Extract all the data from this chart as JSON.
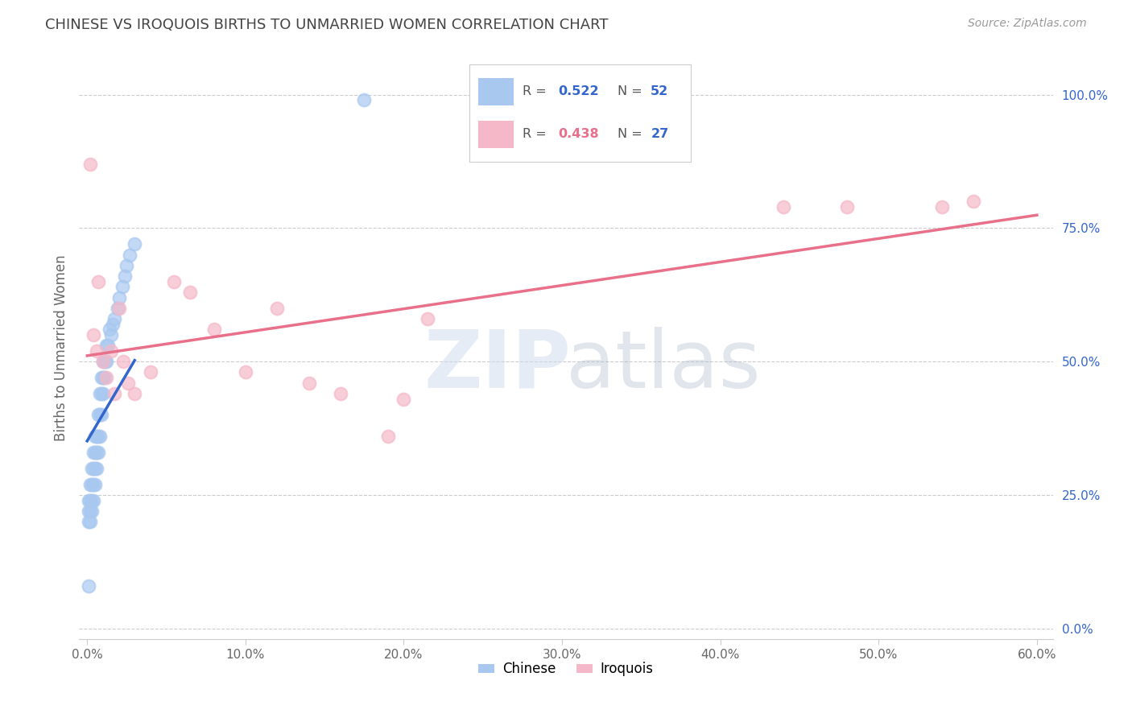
{
  "title": "CHINESE VS IROQUOIS BIRTHS TO UNMARRIED WOMEN CORRELATION CHART",
  "source": "Source: ZipAtlas.com",
  "ylabel": "Births to Unmarried Women",
  "xlabel_ticks": [
    "0.0%",
    "10.0%",
    "20.0%",
    "30.0%",
    "40.0%",
    "50.0%",
    "60.0%"
  ],
  "xlabel_vals": [
    0.0,
    0.1,
    0.2,
    0.3,
    0.4,
    0.5,
    0.6
  ],
  "ylabel_ticks": [
    "0.0%",
    "25.0%",
    "50.0%",
    "75.0%",
    "100.0%"
  ],
  "ylabel_vals": [
    0.0,
    0.25,
    0.5,
    0.75,
    1.0
  ],
  "xlim": [
    -0.005,
    0.61
  ],
  "ylim": [
    -0.02,
    1.07
  ],
  "chinese_R": 0.522,
  "chinese_N": 52,
  "iroquois_R": 0.438,
  "iroquois_N": 27,
  "chinese_color": "#a8c8f0",
  "iroquois_color": "#f5b8c8",
  "chinese_line_color": "#3366cc",
  "iroquois_line_color": "#e8708a",
  "chinese_x": [
    0.001,
    0.001,
    0.001,
    0.002,
    0.002,
    0.002,
    0.002,
    0.003,
    0.003,
    0.003,
    0.003,
    0.004,
    0.004,
    0.004,
    0.004,
    0.005,
    0.005,
    0.005,
    0.005,
    0.006,
    0.006,
    0.006,
    0.007,
    0.007,
    0.007,
    0.008,
    0.008,
    0.008,
    0.009,
    0.009,
    0.009,
    0.01,
    0.01,
    0.01,
    0.011,
    0.011,
    0.012,
    0.012,
    0.013,
    0.014,
    0.015,
    0.016,
    0.017,
    0.019,
    0.02,
    0.022,
    0.024,
    0.025,
    0.027,
    0.03,
    0.175,
    0.001
  ],
  "chinese_y": [
    0.2,
    0.22,
    0.24,
    0.2,
    0.22,
    0.24,
    0.27,
    0.22,
    0.24,
    0.27,
    0.3,
    0.24,
    0.27,
    0.3,
    0.33,
    0.27,
    0.3,
    0.33,
    0.36,
    0.3,
    0.33,
    0.36,
    0.33,
    0.36,
    0.4,
    0.36,
    0.4,
    0.44,
    0.4,
    0.44,
    0.47,
    0.44,
    0.47,
    0.5,
    0.47,
    0.5,
    0.5,
    0.53,
    0.53,
    0.56,
    0.55,
    0.57,
    0.58,
    0.6,
    0.62,
    0.64,
    0.66,
    0.68,
    0.7,
    0.72,
    0.99,
    0.08
  ],
  "iroquois_x": [
    0.002,
    0.004,
    0.006,
    0.007,
    0.01,
    0.012,
    0.015,
    0.017,
    0.02,
    0.023,
    0.026,
    0.03,
    0.04,
    0.055,
    0.065,
    0.08,
    0.1,
    0.12,
    0.14,
    0.16,
    0.19,
    0.2,
    0.215,
    0.44,
    0.48,
    0.54,
    0.56
  ],
  "iroquois_y": [
    0.87,
    0.55,
    0.52,
    0.65,
    0.5,
    0.47,
    0.52,
    0.44,
    0.6,
    0.5,
    0.46,
    0.44,
    0.48,
    0.65,
    0.63,
    0.56,
    0.48,
    0.6,
    0.46,
    0.44,
    0.36,
    0.43,
    0.58,
    0.79,
    0.79,
    0.79,
    0.8
  ],
  "watermark_zip_color": "#ccd8e8",
  "watermark_atlas_color": "#aab8cc",
  "background_color": "#ffffff",
  "grid_color": "#cccccc",
  "legend_box_color": "#f8f8f8",
  "legend_border_color": "#dddddd"
}
